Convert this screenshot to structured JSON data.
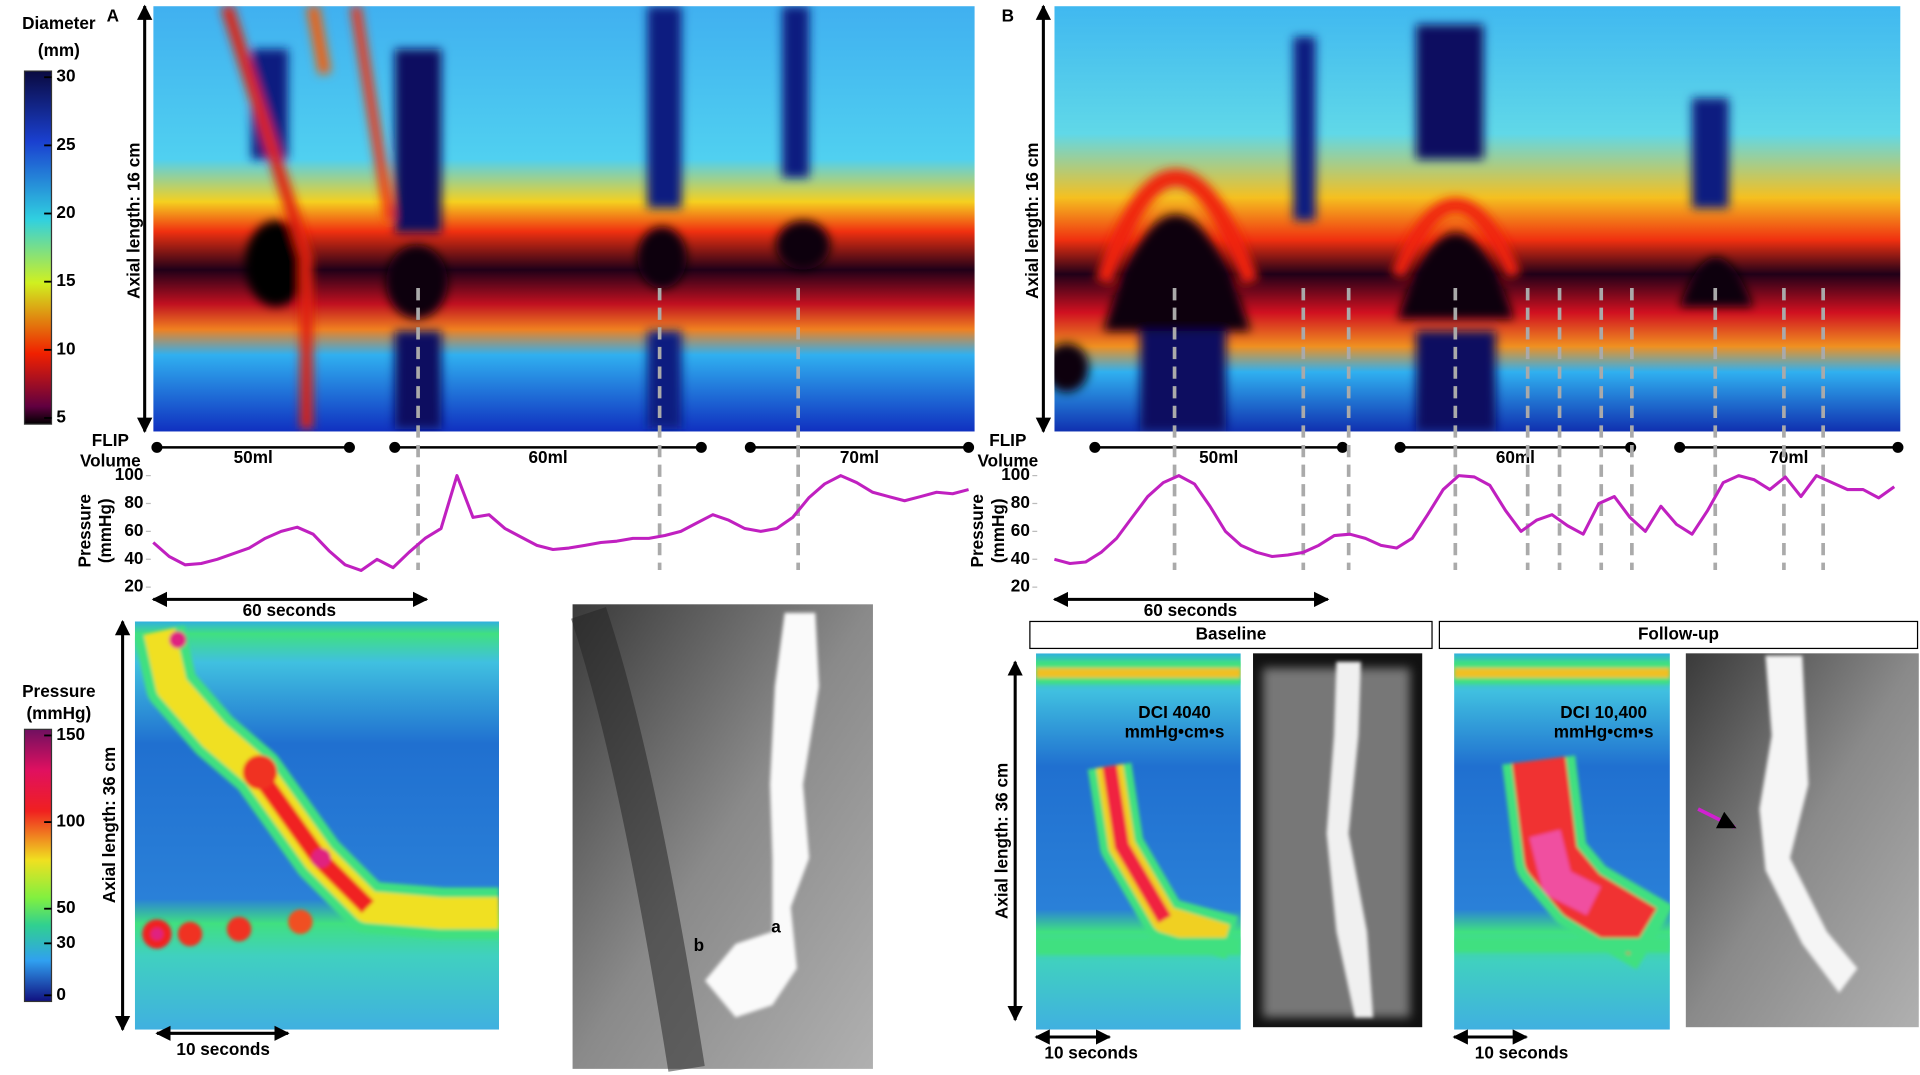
{
  "panel_a": {
    "label": "A",
    "diameter_colorbar": {
      "title": [
        "Diameter",
        "(mm)"
      ],
      "lim": [
        5,
        30
      ],
      "ticks": [
        30,
        25,
        20,
        15,
        10,
        5
      ]
    },
    "flip_axis_label": "Axial length: 16 cm",
    "flip_volume_label": [
      "FLIP",
      "Volume"
    ],
    "volumes": [
      "50ml",
      "60ml",
      "70ml"
    ],
    "pressure": {
      "title": [
        "Pressure",
        "(mmHg)"
      ],
      "ylim": [
        20,
        100
      ],
      "yticks": [
        100,
        80,
        60,
        40,
        20
      ],
      "color": "#c020c0",
      "values": [
        52,
        42,
        36,
        37,
        40,
        44,
        48,
        55,
        60,
        63,
        58,
        46,
        36,
        32,
        40,
        34,
        45,
        55,
        62,
        100,
        70,
        72,
        62,
        56,
        50,
        47,
        48,
        50,
        52,
        53,
        55,
        55,
        57,
        60,
        66,
        72,
        68,
        62,
        60,
        62,
        70,
        84,
        94,
        100,
        95,
        88,
        85,
        82,
        85,
        88,
        87,
        90
      ]
    },
    "time_scale": "60 seconds",
    "pressure_colorbar": {
      "title": [
        "Pressure",
        "(mmHg)"
      ],
      "lim": [
        0,
        150
      ],
      "ticks": [
        150,
        100,
        50,
        30,
        0
      ]
    },
    "hrm_axis_label": "Axial length: 36 cm",
    "hrm_time_scale": "10 seconds",
    "xray_labels": [
      "a",
      "b"
    ]
  },
  "panel_b": {
    "label": "B",
    "flip_axis_label": "Axial length: 16 cm",
    "flip_volume_label": [
      "FLIP",
      "Volume"
    ],
    "volumes": [
      "50ml",
      "60ml",
      "70ml"
    ],
    "pressure": {
      "title": [
        "Pressure",
        "(mmHg)"
      ],
      "ylim": [
        20,
        100
      ],
      "yticks": [
        100,
        80,
        60,
        40,
        20
      ],
      "color": "#c020c0",
      "values": [
        40,
        37,
        38,
        45,
        55,
        70,
        85,
        95,
        100,
        94,
        78,
        60,
        50,
        45,
        42,
        43,
        45,
        50,
        57,
        58,
        55,
        50,
        48,
        55,
        72,
        90,
        100,
        99,
        93,
        75,
        60,
        68,
        72,
        64,
        58,
        80,
        85,
        70,
        60,
        78,
        65,
        58,
        75,
        95,
        100,
        97,
        90,
        99,
        85,
        100,
        95,
        90,
        90,
        84,
        92
      ]
    },
    "time_scale": "60 seconds",
    "baseline": {
      "title": "Baseline",
      "dci": "DCI 4040",
      "dci_unit": "mmHg•cm•s",
      "axis_label": "Axial length: 36 cm",
      "time_scale": "10 seconds"
    },
    "follow_up": {
      "title": "Follow-up",
      "dci": "DCI 10,400",
      "dci_unit": "mmHg•cm•s",
      "time_scale": "10 seconds"
    }
  }
}
